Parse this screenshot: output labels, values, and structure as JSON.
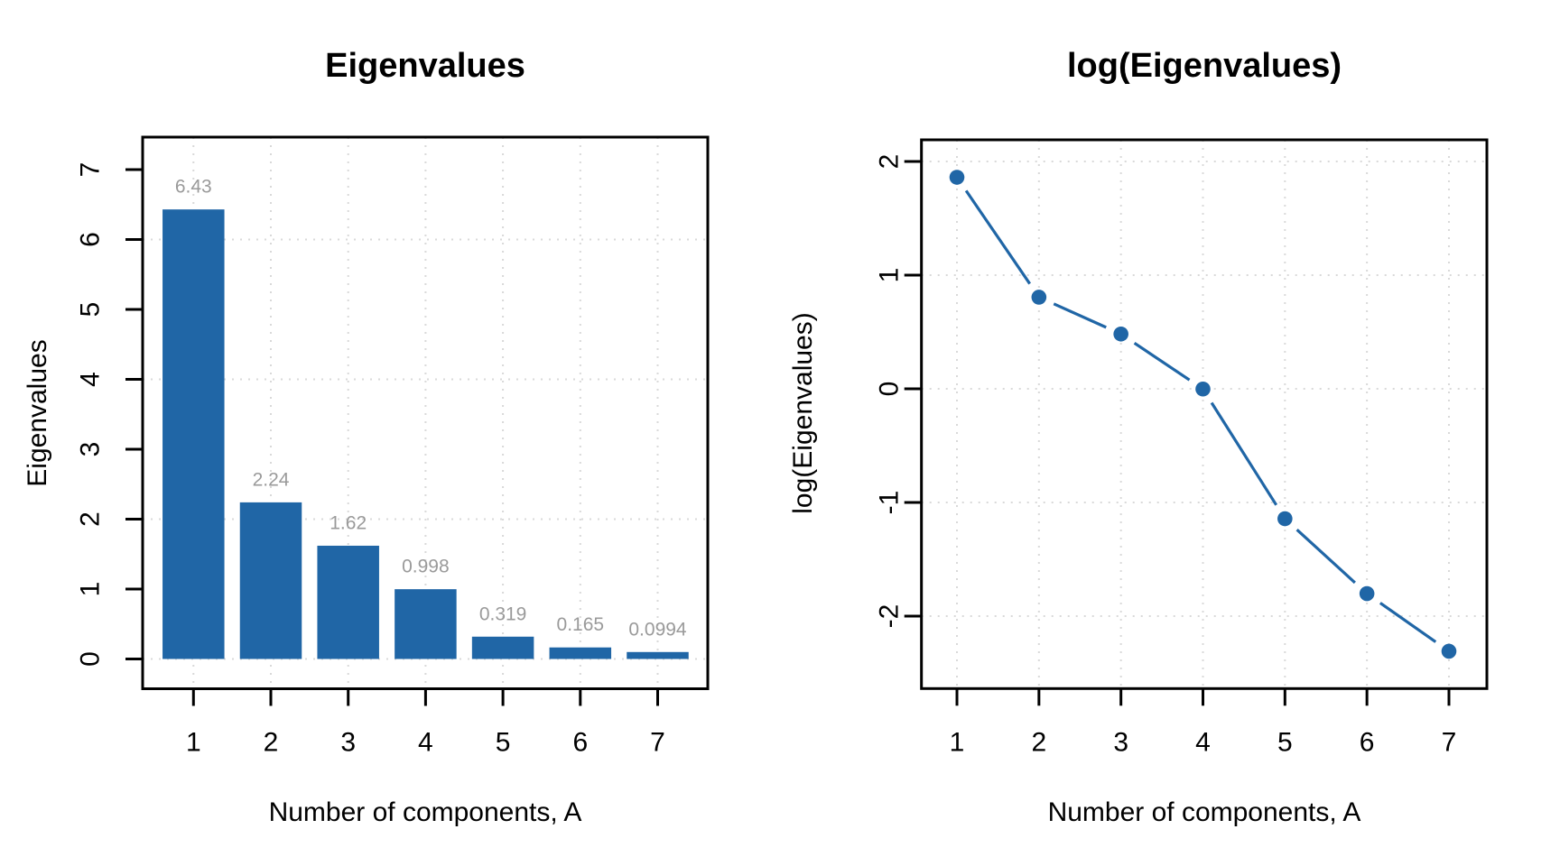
{
  "figure": {
    "background": "#ffffff",
    "description": "Two R-style scree plots side by side: barplot of eigenvalues and line plot of log(eigenvalues)"
  },
  "colors": {
    "bar": "#2066a6",
    "line": "#2066a6",
    "point": "#2066a6",
    "grid": "#d9d9d9",
    "axis": "#000000",
    "tick_label": "#000000",
    "value_label": "#9a9a9a",
    "background": "#ffffff"
  },
  "chart_data": [
    {
      "type": "bar",
      "title": "Eigenvalues",
      "xlabel": "Number of components, A",
      "ylabel": "Eigenvalues",
      "categories": [
        "1",
        "2",
        "3",
        "4",
        "5",
        "6",
        "7"
      ],
      "values": [
        6.43,
        2.24,
        1.62,
        0.998,
        0.319,
        0.165,
        0.0994
      ],
      "value_labels": [
        "6.43",
        "2.24",
        "1.62",
        "0.998",
        "0.319",
        "0.165",
        "0.0994"
      ],
      "ylim": [
        0,
        7
      ],
      "yticks": [
        0,
        1,
        2,
        3,
        4,
        5,
        6,
        7
      ],
      "ytick_labels": [
        "0",
        "1",
        "2",
        "3",
        "4",
        "5",
        "6",
        "7"
      ],
      "grid_y": [
        0,
        2,
        4,
        6
      ],
      "grid": "dotted, light grey, vertical line at each bar center",
      "legend": "none",
      "y_axis_label_rotation": "parallel to axis (rotated 90)"
    },
    {
      "type": "line",
      "title": "log(Eigenvalues)",
      "xlabel": "Number of components, A",
      "ylabel": "log(Eigenvalues)",
      "x": [
        1,
        2,
        3,
        4,
        5,
        6,
        7
      ],
      "xtick_labels": [
        "1",
        "2",
        "3",
        "4",
        "5",
        "6",
        "7"
      ],
      "y": [
        1.861,
        0.806,
        0.482,
        -0.002,
        -1.143,
        -1.802,
        -2.309
      ],
      "ylim": [
        -2.45,
        2.2
      ],
      "yticks": [
        -2,
        -1,
        0,
        1,
        2
      ],
      "ytick_labels": [
        "-2",
        "-1",
        "0",
        "1",
        "2"
      ],
      "grid_y": [
        -2,
        -1,
        0,
        1,
        2
      ],
      "grid": "dotted, light grey, vertical line at each x position",
      "marker": "filled-circle",
      "line_style": "type=b (segments with gaps around points)",
      "legend": "none",
      "y_axis_label_rotation": "parallel to axis (rotated 90)"
    }
  ]
}
